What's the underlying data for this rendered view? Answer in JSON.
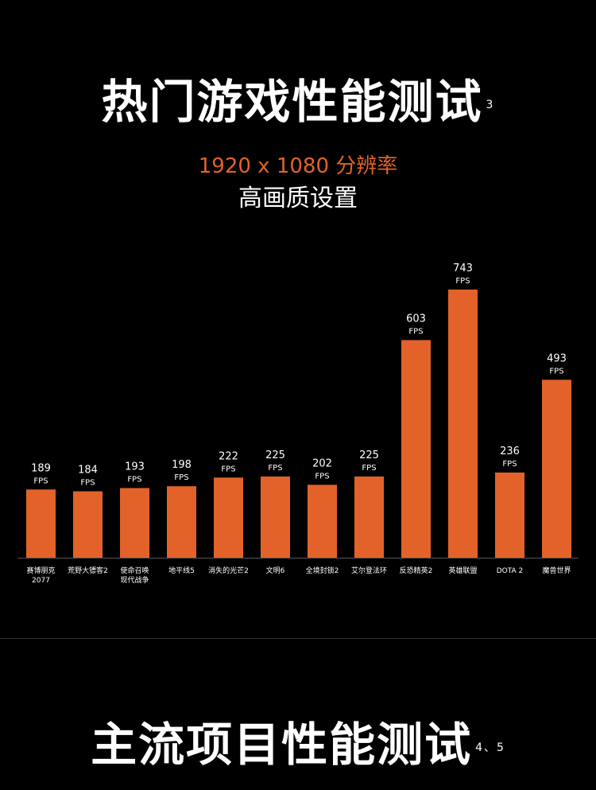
{
  "header": {
    "title": "热门游戏性能测试",
    "title_note": "3",
    "resolution": "1920 x 1080 分辨率",
    "setting": "高画质设置"
  },
  "section2": {
    "title": "主流项目性能测试",
    "title_note": "4、5"
  },
  "colors": {
    "accent": "#e2622a",
    "background": "#000000",
    "text": "#ffffff"
  },
  "chart_data": {
    "type": "bar",
    "unit": "FPS",
    "categories": [
      [
        "赛博朋克",
        "2077"
      ],
      [
        "荒野大镖客2"
      ],
      [
        "使命召唤",
        "现代战争"
      ],
      [
        "地平线5"
      ],
      [
        "消失的光芒2"
      ],
      [
        "文明6"
      ],
      [
        "全境封锁2"
      ],
      [
        "艾尔登法环"
      ],
      [
        "反恐精英2"
      ],
      [
        "英雄联盟"
      ],
      [
        "DOTA 2"
      ],
      [
        "魔兽世界"
      ]
    ],
    "values": [
      189,
      184,
      193,
      198,
      222,
      225,
      202,
      225,
      603,
      743,
      236,
      493
    ],
    "grid": false
  }
}
